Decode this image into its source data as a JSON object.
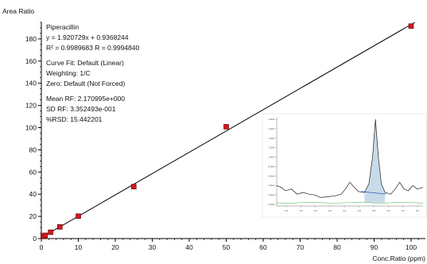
{
  "chart_data": {
    "type": "scatter",
    "ylabel": "Area Ratio",
    "xlabel": "Conc.Ratio (ppm)",
    "xlim": [
      0,
      103
    ],
    "ylim": [
      0,
      195
    ],
    "x_ticks": [
      0,
      10,
      20,
      30,
      40,
      50,
      60,
      70,
      80,
      90,
      100
    ],
    "y_ticks": [
      0,
      20,
      40,
      60,
      80,
      100,
      120,
      140,
      160,
      180
    ],
    "grid": false,
    "marker_color": "#d8141e",
    "line_color": "#000000",
    "points": [
      {
        "x": 0.5,
        "y": 1.9
      },
      {
        "x": 1,
        "y": 2.9
      },
      {
        "x": 2.5,
        "y": 5.7
      },
      {
        "x": 5,
        "y": 10.5
      },
      {
        "x": 10,
        "y": 20.2
      },
      {
        "x": 25,
        "y": 46.8
      },
      {
        "x": 50,
        "y": 100.8
      },
      {
        "x": 100,
        "y": 191.5
      }
    ],
    "fit": {
      "slope": 1.920729,
      "intercept": 0.9368244
    },
    "annotations": [
      "Piperacillin",
      "y = 1.920729x + 0.9368244",
      "R² = 0.9989683     R = 0.9994840",
      "Curve Fit: Default (Linear)",
      "Weighting: 1/C",
      "Zero: Default (Not Forced)",
      "Mean RF: 2.170995e+000",
      "SD RF: 3.352493e-001",
      "%RSD: 15.442201"
    ]
  },
  "inset": {
    "description_free": true,
    "peak_color": "#5b8fb9",
    "fill_color": "#c9dbe9",
    "trace_color": "#222222",
    "baseline_color": "#3a64c8",
    "ref_trace_color": "#66bb66",
    "y_ticks": [
      "0.0e0",
      "2.0e4",
      "4.0e4",
      "6.0e4",
      "8.0e4",
      "1.0e5",
      "1.2e5",
      "1.4e5",
      "1.6e5",
      "1.8e5"
    ],
    "x_ticks": [
      "1.6",
      "1.8",
      "2.0",
      "2.2",
      "2.4",
      "2.6",
      "2.8",
      "3.0",
      "3.2",
      "3.4"
    ],
    "trace": [
      [
        0,
        0.22
      ],
      [
        0.03,
        0.2
      ],
      [
        0.06,
        0.16
      ],
      [
        0.1,
        0.18
      ],
      [
        0.14,
        0.12
      ],
      [
        0.18,
        0.14
      ],
      [
        0.22,
        0.12
      ],
      [
        0.26,
        0.11
      ],
      [
        0.3,
        0.08
      ],
      [
        0.35,
        0.09
      ],
      [
        0.4,
        0.1
      ],
      [
        0.44,
        0.12
      ],
      [
        0.47,
        0.18
      ],
      [
        0.5,
        0.26
      ],
      [
        0.53,
        0.2
      ],
      [
        0.56,
        0.15
      ],
      [
        0.6,
        0.14
      ],
      [
        0.63,
        0.24
      ],
      [
        0.655,
        0.55
      ],
      [
        0.675,
        1.0
      ],
      [
        0.695,
        0.55
      ],
      [
        0.715,
        0.24
      ],
      [
        0.74,
        0.14
      ],
      [
        0.78,
        0.12
      ],
      [
        0.81,
        0.18
      ],
      [
        0.84,
        0.26
      ],
      [
        0.87,
        0.18
      ],
      [
        0.9,
        0.16
      ],
      [
        0.93,
        0.22
      ],
      [
        0.96,
        0.18
      ],
      [
        1,
        0.2
      ]
    ]
  }
}
